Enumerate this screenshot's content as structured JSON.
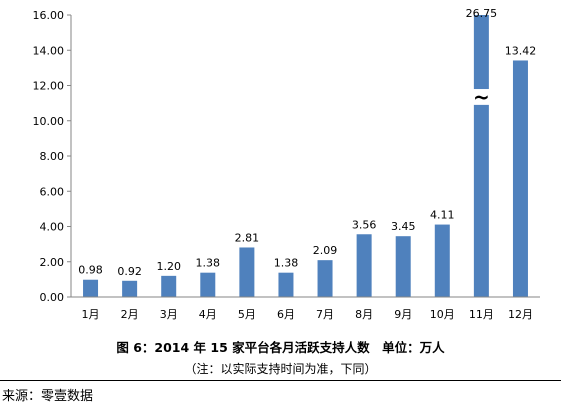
{
  "chart_data": {
    "type": "bar",
    "categories": [
      "1月",
      "2月",
      "3月",
      "4月",
      "5月",
      "6月",
      "7月",
      "8月",
      "9月",
      "10月",
      "11月",
      "12月"
    ],
    "values": [
      0.98,
      0.92,
      1.2,
      1.38,
      2.81,
      1.38,
      2.09,
      3.56,
      3.45,
      4.11,
      26.75,
      13.42
    ],
    "value_labels": [
      "0.98",
      "0.92",
      "1.20",
      "1.38",
      "2.81",
      "1.38",
      "2.09",
      "3.56",
      "3.45",
      "4.11",
      "26.75",
      "13.42"
    ],
    "y_ticks": [
      "0.00",
      "2.00",
      "4.00",
      "6.00",
      "8.00",
      "10.00",
      "12.00",
      "14.00",
      "16.00"
    ],
    "ylim": [
      0,
      16
    ],
    "axis_break_category": "11月",
    "axis_break_symbol": "~",
    "grid": false,
    "bar_color": "#4F81BD"
  },
  "caption": {
    "title": "图 6：2014 年 15 家平台各月活跃支持人数　单位：万人",
    "note": "（注：以实际支持时间为准，下同）"
  },
  "source": "来源：零壹数据"
}
